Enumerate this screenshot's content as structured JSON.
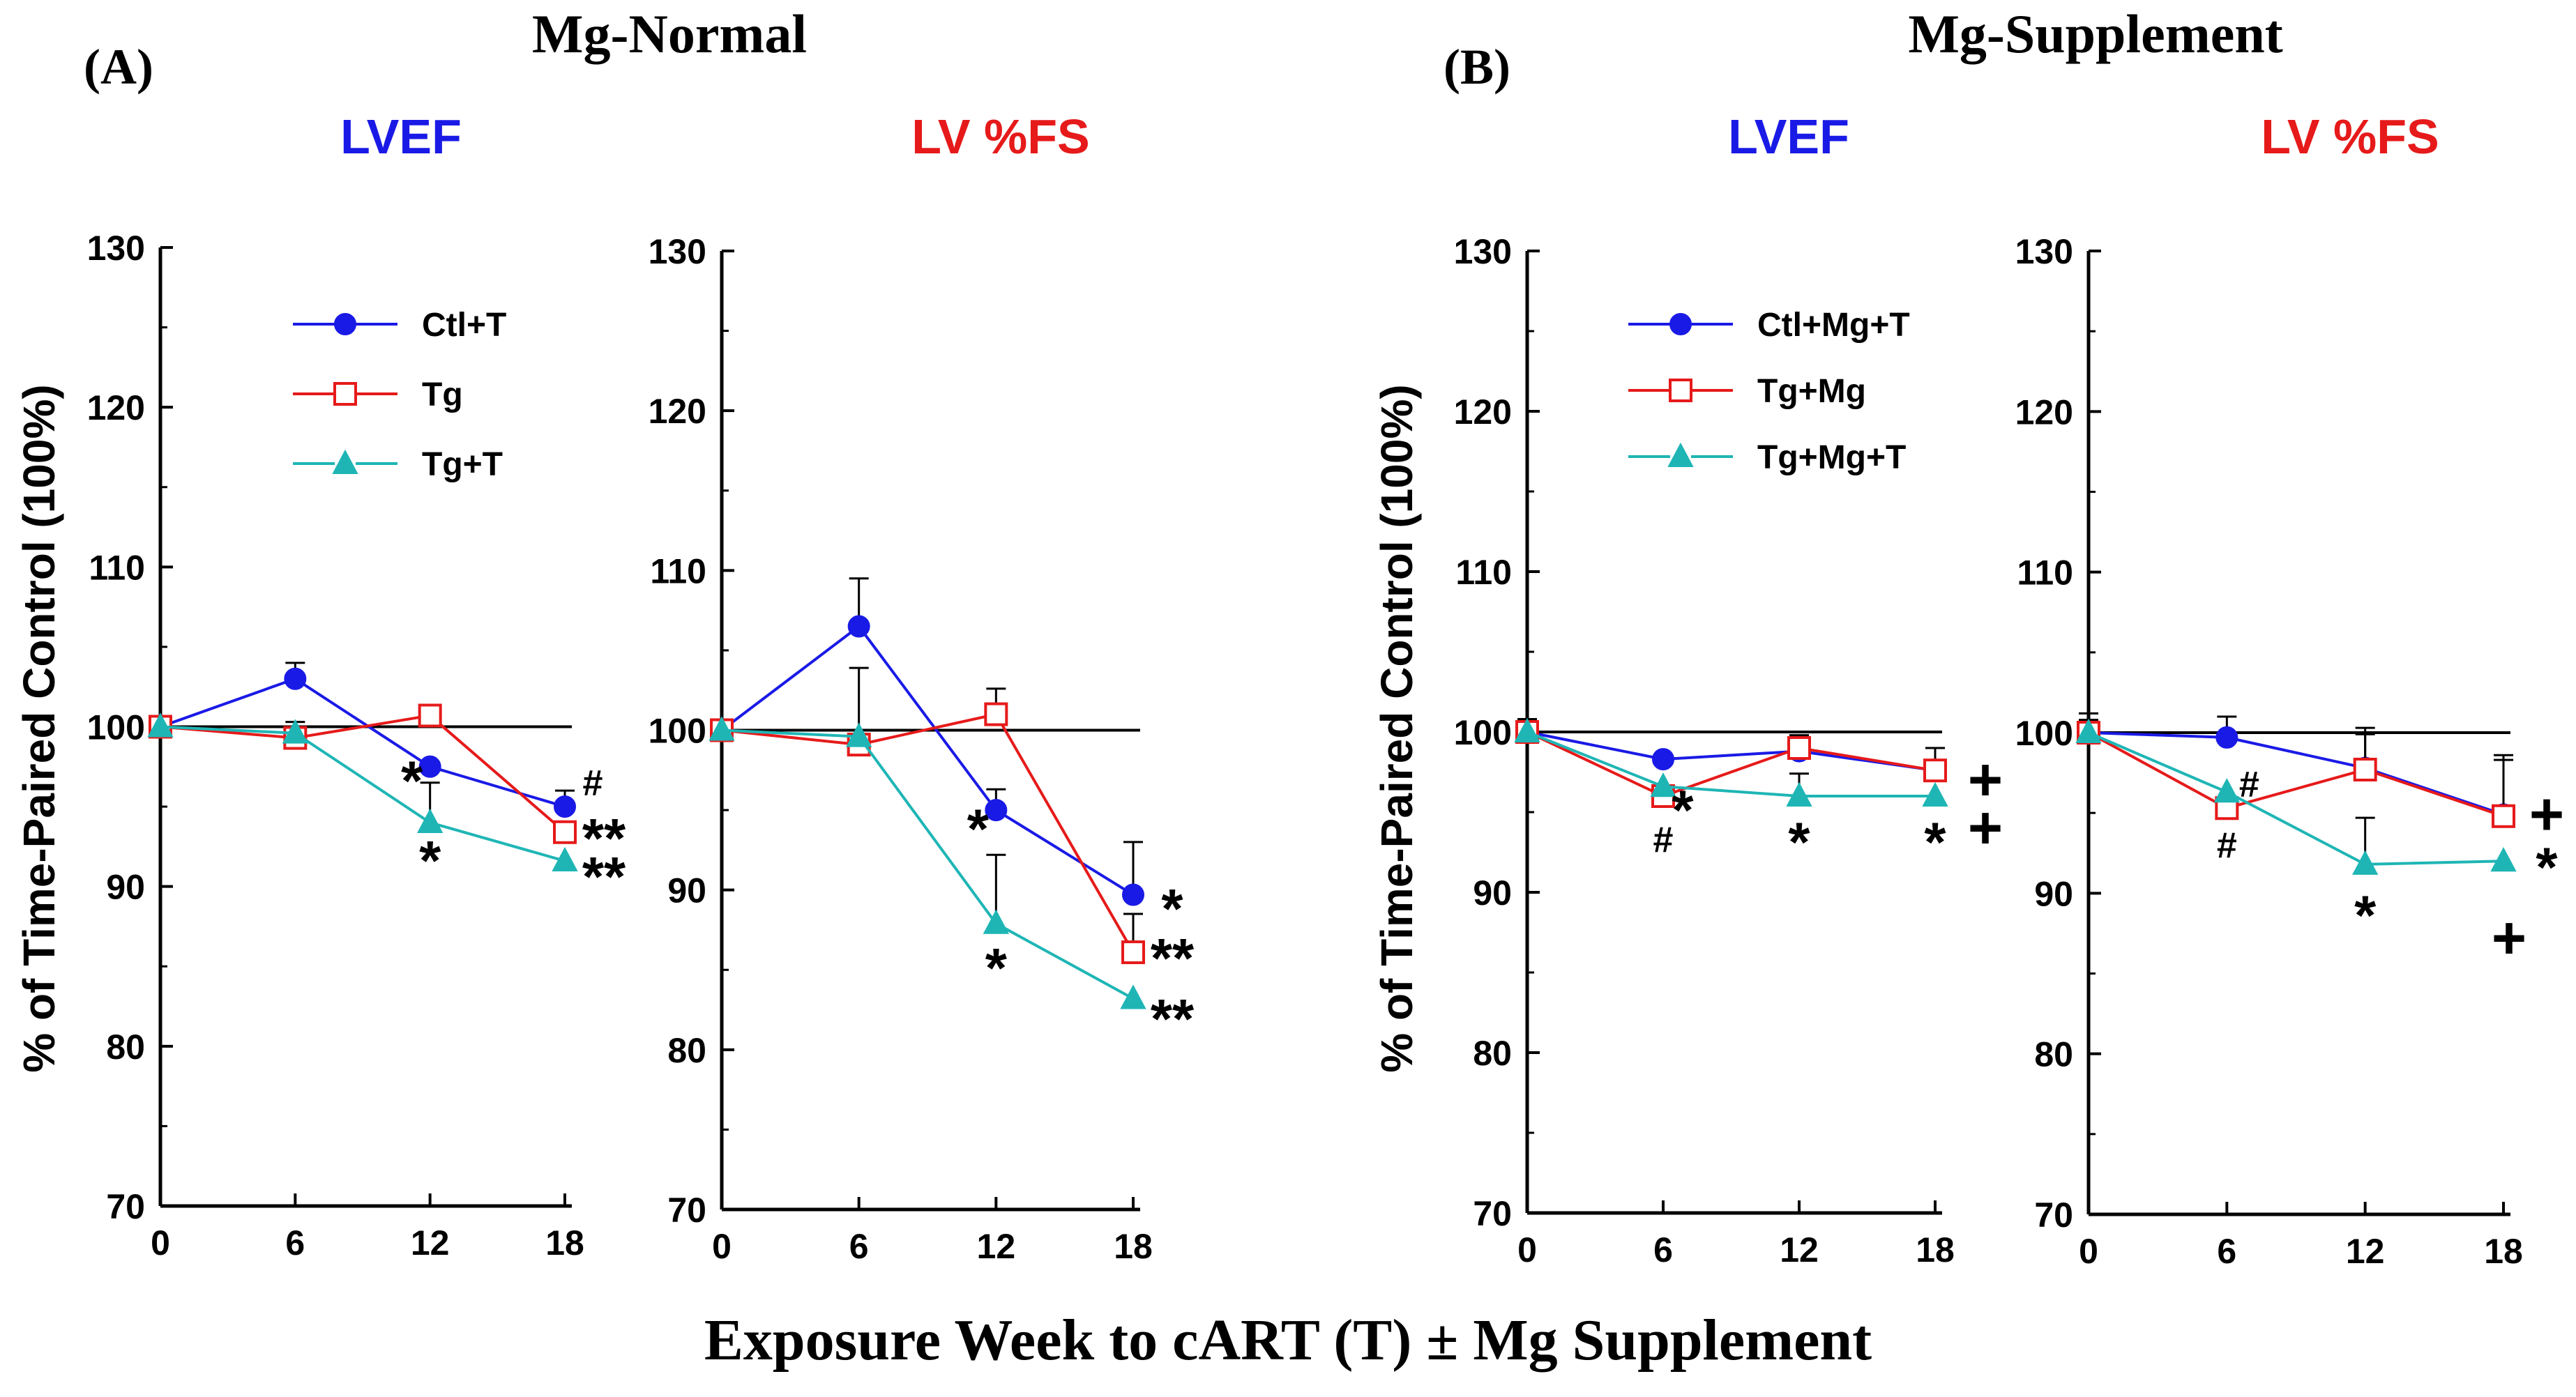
{
  "figure": {
    "panel_a_label": "(A)",
    "panel_a_title": "Mg-Normal",
    "panel_b_label": "(B)",
    "panel_b_title": "Mg-Supplement",
    "ylabel": "% of Time-Paired Control (100%)",
    "xlabel": "Exposure Week to cART (T) ± Mg Supplement"
  },
  "chart_data": [
    {
      "type": "line",
      "title": "LVEF",
      "title_color": "#1a1ae6",
      "x": [
        0,
        6,
        12,
        18
      ],
      "xticks": [
        "0",
        "6",
        "12",
        "18"
      ],
      "ylim": [
        70,
        130
      ],
      "yticks": [
        "70",
        "80",
        "90",
        "100",
        "110",
        "120",
        "130"
      ],
      "reference": 100,
      "series": [
        {
          "name": "Ctl+T",
          "color": "#1a1ae6",
          "marker": "circle",
          "values": [
            100,
            103,
            97.5,
            95
          ],
          "err": [
            0,
            1.0,
            0,
            1.0
          ]
        },
        {
          "name": "Tg",
          "color": "#e61a1a",
          "marker": "square-open",
          "values": [
            100,
            99.3,
            100.7,
            93.4
          ],
          "err": [
            0,
            1.0,
            0,
            0
          ]
        },
        {
          "name": "Tg+T",
          "color": "#1fb5b5",
          "marker": "triangle",
          "values": [
            100,
            99.6,
            94,
            91.6
          ],
          "err": [
            0,
            0,
            2.5,
            0
          ]
        }
      ],
      "annotations": [
        {
          "text": "*",
          "x": 12,
          "y": 97.0,
          "dx": -26
        },
        {
          "text": "*",
          "x": 12,
          "y": 92.0,
          "dx": 0
        },
        {
          "text": "#",
          "x": 18,
          "y": 96.5,
          "dx": 40
        },
        {
          "text": "**",
          "x": 18,
          "y": 93.4,
          "dx": 56
        },
        {
          "text": "**",
          "x": 18,
          "y": 91.0,
          "dx": 56
        }
      ]
    },
    {
      "type": "line",
      "title": "LV %FS",
      "title_color": "#e61a1a",
      "x": [
        0,
        6,
        12,
        18
      ],
      "xticks": [
        "0",
        "6",
        "12",
        "18"
      ],
      "ylim": [
        70,
        130
      ],
      "yticks": [
        "70",
        "80",
        "90",
        "100",
        "110",
        "120",
        "130"
      ],
      "reference": 100,
      "series": [
        {
          "name": "Ctl+T",
          "color": "#1a1ae6",
          "marker": "circle",
          "values": [
            100,
            106.5,
            95,
            89.7
          ],
          "err": [
            0,
            3.0,
            1.3,
            3.3
          ]
        },
        {
          "name": "Tg",
          "color": "#e61a1a",
          "marker": "square-open",
          "values": [
            100,
            99.1,
            101,
            86.1
          ],
          "err": [
            0,
            0,
            1.6,
            2.4
          ]
        },
        {
          "name": "Tg+T",
          "color": "#1fb5b5",
          "marker": "triangle",
          "values": [
            100,
            99.6,
            87.9,
            83.2
          ],
          "err": [
            0,
            4.3,
            4.3,
            0
          ]
        }
      ],
      "annotations": [
        {
          "text": "*",
          "x": 12,
          "y": 94.2,
          "dx": -26
        },
        {
          "text": "*",
          "x": 12,
          "y": 85.5,
          "dx": 0
        },
        {
          "text": "*",
          "x": 18,
          "y": 89.2,
          "dx": 56
        },
        {
          "text": "**",
          "x": 18,
          "y": 86.1,
          "dx": 56
        },
        {
          "text": "**",
          "x": 18,
          "y": 82.3,
          "dx": 56
        }
      ]
    },
    {
      "type": "line",
      "title": "LVEF",
      "title_color": "#1a1ae6",
      "x": [
        0,
        6,
        12,
        18
      ],
      "xticks": [
        "0",
        "6",
        "12",
        "18"
      ],
      "ylim": [
        70,
        130
      ],
      "yticks": [
        "70",
        "80",
        "90",
        "100",
        "110",
        "120",
        "130"
      ],
      "reference": 100,
      "series": [
        {
          "name": "Ctl+Mg+T",
          "color": "#1a1ae6",
          "marker": "circle",
          "values": [
            100,
            98.3,
            98.8,
            97.6
          ],
          "err": [
            0.8,
            0,
            1.0,
            0
          ]
        },
        {
          "name": "Tg+Mg",
          "color": "#e61a1a",
          "marker": "square-open",
          "values": [
            100,
            96,
            99,
            97.6
          ],
          "err": [
            0.8,
            0,
            0,
            1.4
          ]
        },
        {
          "name": "Tg+Mg+T",
          "color": "#1fb5b5",
          "marker": "triangle",
          "values": [
            100,
            96.6,
            96,
            96
          ],
          "err": [
            0,
            0,
            1.4,
            0
          ]
        }
      ],
      "annotations": [
        {
          "text": "*",
          "x": 6,
          "y": 95.5,
          "dx": 28
        },
        {
          "text": "#",
          "x": 6,
          "y": 93.3,
          "dx": 0
        },
        {
          "text": "*",
          "x": 12,
          "y": 93.5,
          "dx": 0
        },
        {
          "text": "+",
          "x": 18,
          "y": 97.3,
          "dx": 72
        },
        {
          "text": "*",
          "x": 18,
          "y": 93.5,
          "dx": 0
        },
        {
          "text": "+",
          "x": 18,
          "y": 94.3,
          "dx": 72
        }
      ]
    },
    {
      "type": "line",
      "title": "LV %FS",
      "title_color": "#e61a1a",
      "x": [
        0,
        6,
        12,
        18
      ],
      "xticks": [
        "0",
        "6",
        "12",
        "18"
      ],
      "ylim": [
        70,
        130
      ],
      "yticks": [
        "70",
        "80",
        "90",
        "100",
        "110",
        "120",
        "130"
      ],
      "reference": 100,
      "series": [
        {
          "name": "Ctl+Mg+T",
          "color": "#1a1ae6",
          "marker": "circle",
          "values": [
            100,
            99.7,
            97.8,
            94.9
          ],
          "err": [
            1.2,
            1.3,
            2.5,
            3.7
          ]
        },
        {
          "name": "Tg+Mg",
          "color": "#e61a1a",
          "marker": "square-open",
          "values": [
            100,
            95.3,
            97.7,
            94.8
          ],
          "err": [
            0.8,
            0,
            2.2,
            3.5
          ]
        },
        {
          "name": "Tg+Mg+T",
          "color": "#1fb5b5",
          "marker": "triangle",
          "values": [
            100,
            96.3,
            91.8,
            92
          ],
          "err": [
            0,
            0,
            2.9,
            0
          ]
        }
      ],
      "annotations": [
        {
          "text": "#",
          "x": 6,
          "y": 96.8,
          "dx": 32
        },
        {
          "text": "#",
          "x": 6,
          "y": 93.0,
          "dx": 0
        },
        {
          "text": "*",
          "x": 12,
          "y": 89.0,
          "dx": 0
        },
        {
          "text": "+",
          "x": 18,
          "y": 95.2,
          "dx": 62
        },
        {
          "text": "*",
          "x": 18,
          "y": 92.0,
          "dx": 62
        },
        {
          "text": "+",
          "x": 18,
          "y": 87.5,
          "dx": 8
        }
      ]
    }
  ]
}
